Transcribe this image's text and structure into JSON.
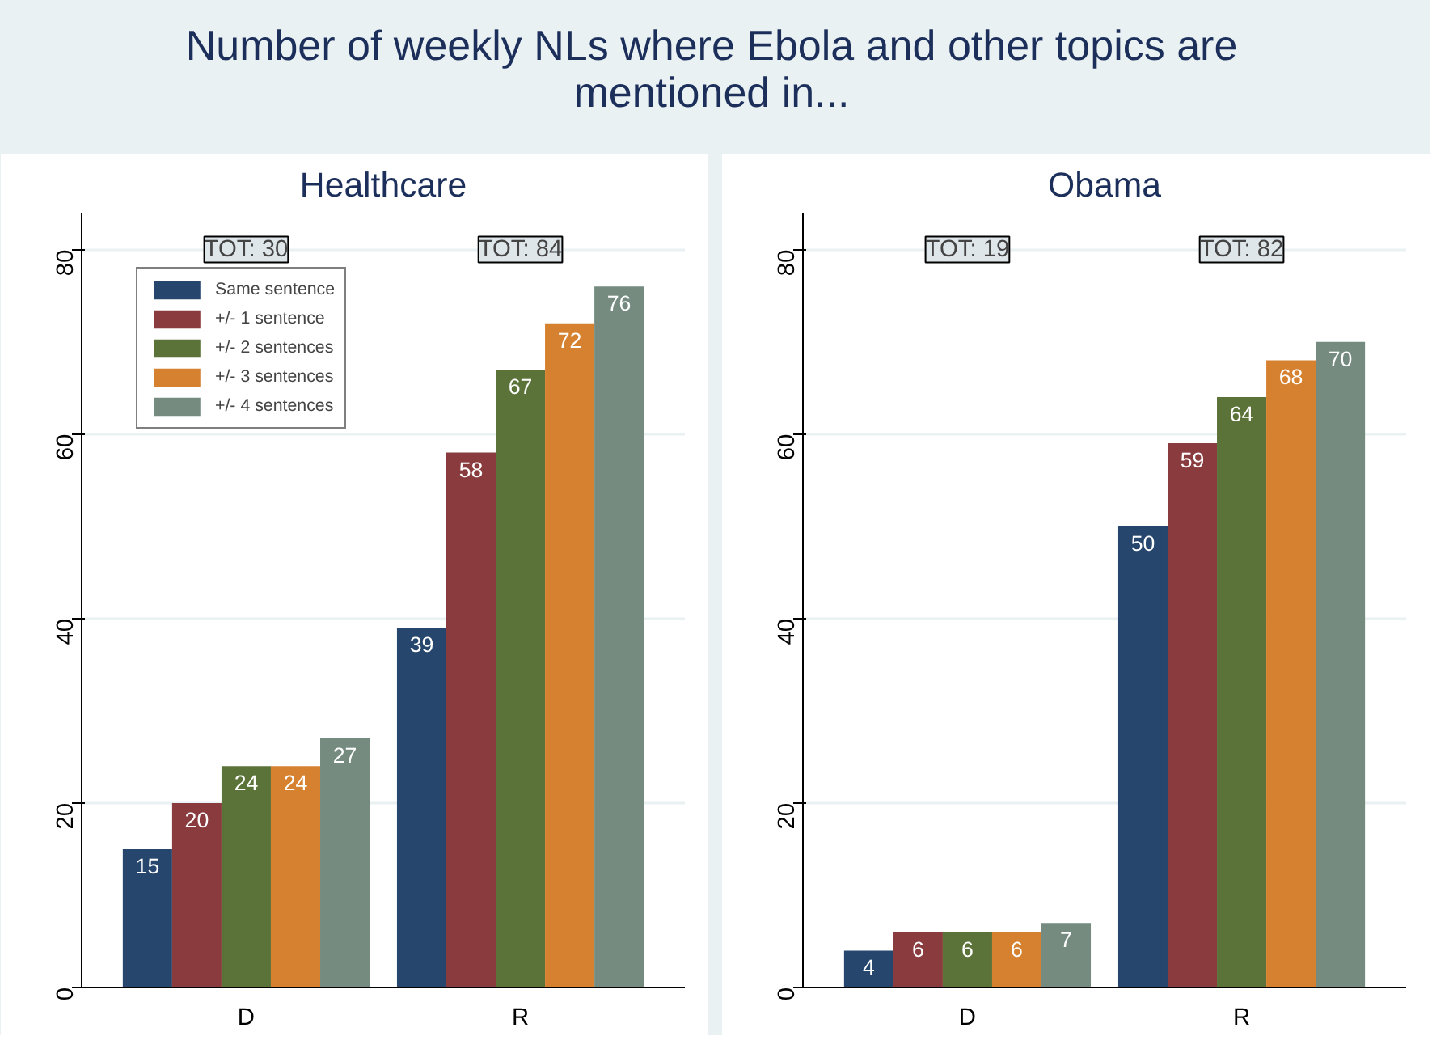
{
  "chart_data": [
    {
      "type": "bar",
      "title": "Number of weekly NLs where Ebola and other topics are mentioned in...",
      "subtitle": "Healthcare",
      "categories": [
        "D",
        "R"
      ],
      "ylim": [
        0,
        84
      ],
      "yticks": [
        0,
        20,
        40,
        60,
        80
      ],
      "grid": "y",
      "legend": "top left",
      "data_labels": true,
      "series": [
        {
          "name": "Same sentence",
          "color": "#26466d",
          "values": [
            15,
            39
          ]
        },
        {
          "name": "+/- 1 sentence",
          "color": "#8a3b3e",
          "values": [
            20,
            58
          ]
        },
        {
          "name": "+/- 2 sentences",
          "color": "#5b7338",
          "values": [
            24,
            67
          ]
        },
        {
          "name": "+/- 3 sentences",
          "color": "#d6812f",
          "values": [
            24,
            72
          ]
        },
        {
          "name": "+/- 4 sentences",
          "color": "#758b80",
          "values": [
            27,
            76
          ]
        }
      ],
      "annotations": [
        "TOT: 30",
        "TOT: 84"
      ]
    },
    {
      "type": "bar",
      "subtitle": "Obama",
      "categories": [
        "D",
        "R"
      ],
      "ylim": [
        0,
        84
      ],
      "yticks": [
        0,
        20,
        40,
        60,
        80
      ],
      "grid": "y",
      "data_labels": true,
      "series": [
        {
          "color": "#26466d",
          "values": [
            4,
            50
          ]
        },
        {
          "color": "#8a3b3e",
          "values": [
            6,
            59
          ]
        },
        {
          "color": "#5b7338",
          "values": [
            6,
            64
          ]
        },
        {
          "color": "#d6812f",
          "values": [
            6,
            68
          ]
        },
        {
          "color": "#758b80",
          "values": [
            7,
            70
          ]
        }
      ],
      "annotations": [
        "TOT: 19",
        "TOT: 82"
      ]
    }
  ]
}
